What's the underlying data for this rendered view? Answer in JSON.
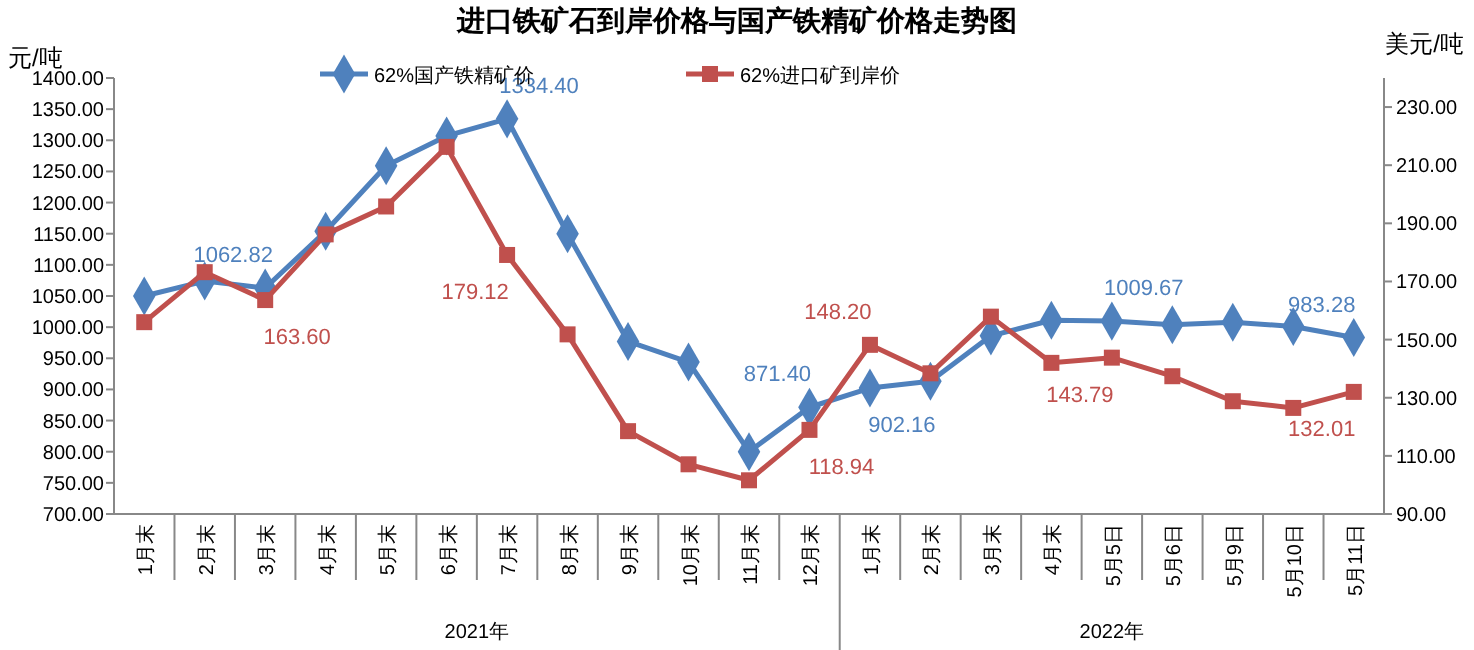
{
  "chart_data": {
    "type": "line",
    "title": "进口铁矿石到岸价格与国产铁精矿价格走势图",
    "ylabel": "元/吨",
    "y2label": "美元/吨",
    "categories": [
      "1月末",
      "2月末",
      "3月末",
      "4月末",
      "5月末",
      "6月末",
      "7月末",
      "8月末",
      "9月末",
      "10月末",
      "11月末",
      "12月末",
      "1月末",
      "2月末",
      "3月末",
      "4月末",
      "5月5日",
      "5月6日",
      "5月9日",
      "5月10日",
      "5月11日"
    ],
    "annotations": [
      "2021年",
      "2022年"
    ],
    "series": [
      {
        "name": "62%国产铁精矿价",
        "color": "#4f81bd",
        "marker": "diamond",
        "values": [
          1050,
          1074,
          1062.82,
          1154,
          1259,
          1307,
          1334.4,
          1150,
          977,
          944,
          800,
          871.4,
          902.16,
          913,
          986,
          1011,
          1009.67,
          1004,
          1008,
          1001,
          983.28
        ],
        "value_labels": [
          null,
          null,
          "1062.82",
          null,
          null,
          null,
          "1334.40",
          null,
          null,
          null,
          null,
          "871.40",
          "902.16",
          null,
          null,
          null,
          "1009.67",
          null,
          null,
          null,
          "983.28"
        ]
      },
      {
        "name": "62%进口矿到岸价",
        "color": "#c0504d",
        "marker": "square",
        "axis": "y2",
        "values": [
          156,
          173.2,
          163.6,
          186.2,
          195.8,
          216.3,
          179.12,
          151.8,
          118.5,
          107.1,
          101.6,
          118.94,
          148.2,
          138.4,
          157.9,
          142,
          143.79,
          137.4,
          128.8,
          126.5,
          132.01
        ],
        "value_labels": [
          null,
          null,
          "163.60",
          null,
          null,
          null,
          "179.12",
          null,
          null,
          null,
          null,
          "118.94",
          "148.20",
          null,
          null,
          null,
          "143.79",
          null,
          null,
          null,
          "132.01"
        ]
      }
    ],
    "ylim": [
      700,
      1400
    ],
    "yticks": [
      {
        "value": 700,
        "label": "700.00"
      },
      {
        "value": 750,
        "label": "750.00"
      },
      {
        "value": 800,
        "label": "800.00"
      },
      {
        "value": 850,
        "label": "850.00"
      },
      {
        "value": 900,
        "label": "900.00"
      },
      {
        "value": 950,
        "label": "950.00"
      },
      {
        "value": 1000,
        "label": "1000.00"
      },
      {
        "value": 1050,
        "label": "1050.00"
      },
      {
        "value": 1100,
        "label": "1100.00"
      },
      {
        "value": 1150,
        "label": "1150.00"
      },
      {
        "value": 1200,
        "label": "1200.00"
      },
      {
        "value": 1250,
        "label": "1250.00"
      },
      {
        "value": 1300,
        "label": "1300.00"
      },
      {
        "value": 1350,
        "label": "1350.00"
      },
      {
        "value": 1400,
        "label": "1400.00"
      }
    ],
    "y2lim": [
      90,
      240
    ],
    "y2ticks": [
      {
        "value": 90,
        "label": "90.00"
      },
      {
        "value": 110,
        "label": "110.00"
      },
      {
        "value": 130,
        "label": "130.00"
      },
      {
        "value": 150,
        "label": "150.00"
      },
      {
        "value": 170,
        "label": "170.00"
      },
      {
        "value": 190,
        "label": "190.00"
      },
      {
        "value": 210,
        "label": "210.00"
      },
      {
        "value": 230,
        "label": "230.00"
      }
    ],
    "legend": "top",
    "grid": false
  }
}
